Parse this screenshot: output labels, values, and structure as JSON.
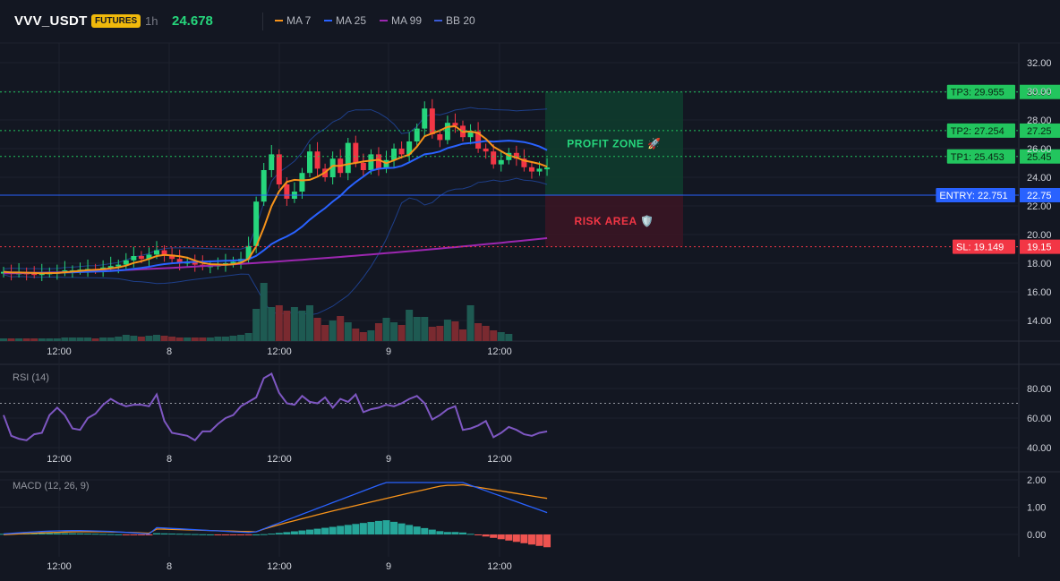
{
  "header": {
    "symbol": "VVV_USDT",
    "badge": "FUTURES",
    "timeframe": "1h",
    "last_price": "24.678",
    "legend": [
      {
        "label": "MA 7",
        "color": "#f7931a"
      },
      {
        "label": "MA 25",
        "color": "#2962ff"
      },
      {
        "label": "MA 99",
        "color": "#9c27b0"
      },
      {
        "label": "BB 20",
        "color": "#1e3f8a"
      }
    ]
  },
  "price_axis": {
    "ticks": [
      "32.00",
      "30.00",
      "28.00",
      "26.00",
      "24.00",
      "22.00",
      "20.00",
      "18.00",
      "16.00",
      "14.00"
    ],
    "range": [
      12.0,
      33.2
    ]
  },
  "time_axis": {
    "labels": [
      "12:00",
      "8",
      "12:00",
      "9",
      "12:00"
    ]
  },
  "levels": [
    {
      "name": "tp3",
      "tag": "TP3: 29.955",
      "axis_value": "29.96",
      "price": 29.955,
      "color": "#22c55e",
      "style": "dotted"
    },
    {
      "name": "tp2",
      "tag": "TP2: 27.254",
      "axis_value": "27.25",
      "price": 27.254,
      "color": "#22c55e",
      "style": "dotted"
    },
    {
      "name": "tp1",
      "tag": "TP1: 25.453",
      "axis_value": "25.45",
      "price": 25.453,
      "color": "#22c55e",
      "style": "dotted"
    },
    {
      "name": "entry",
      "tag": "ENTRY: 22.751",
      "axis_value": "22.75",
      "price": 22.751,
      "color": "#2962ff",
      "style": "solid"
    },
    {
      "name": "sl",
      "tag": "SL: 19.149",
      "axis_value": "19.15",
      "price": 19.149,
      "color": "#f23645",
      "style": "dotted"
    }
  ],
  "zones": {
    "profit_label": "PROFIT ZONE 🚀",
    "risk_label": "RISK AREA 🛡️",
    "profit_color": "#0f3d2e",
    "risk_color": "#3a1524"
  },
  "rsi": {
    "label": "RSI (14)",
    "ticks": [
      "80.00",
      "60.00",
      "40.00"
    ],
    "range": [
      37,
      95
    ],
    "overbought": 70,
    "color": "#7e57c2",
    "values": [
      62,
      48,
      46,
      45,
      49,
      50,
      62,
      67,
      62,
      53,
      52,
      60,
      63,
      69,
      73,
      70,
      68,
      69,
      69,
      68,
      76,
      58,
      50,
      49,
      48,
      45,
      51,
      51,
      56,
      60,
      62,
      68,
      71,
      74,
      87,
      90,
      77,
      70,
      69,
      75,
      71,
      70,
      74,
      67,
      73,
      71,
      76,
      64,
      66,
      67,
      69,
      68,
      70,
      73,
      75,
      70,
      59,
      62,
      66,
      68,
      52,
      53,
      55,
      58,
      47,
      50,
      54,
      52,
      49,
      48,
      50,
      51
    ]
  },
  "macd": {
    "label": "MACD (12, 26, 9)",
    "ticks": [
      "2.00",
      "1.00",
      "0.00"
    ],
    "range": [
      -0.6,
      2.25
    ],
    "macd_color": "#2962ff",
    "signal_color": "#f7931a",
    "hist_pos_color": "#26a69a",
    "hist_neg_color": "#ef5350"
  },
  "colors": {
    "up": "#26d67c",
    "down": "#f23645",
    "vol_up": "#1e5a52",
    "vol_down": "#7a2a30",
    "grid": "#1e222d",
    "ma7": "#f7931a",
    "ma25": "#2962ff",
    "ma99": "#9c27b0",
    "bb": "#1e3f8a"
  }
}
